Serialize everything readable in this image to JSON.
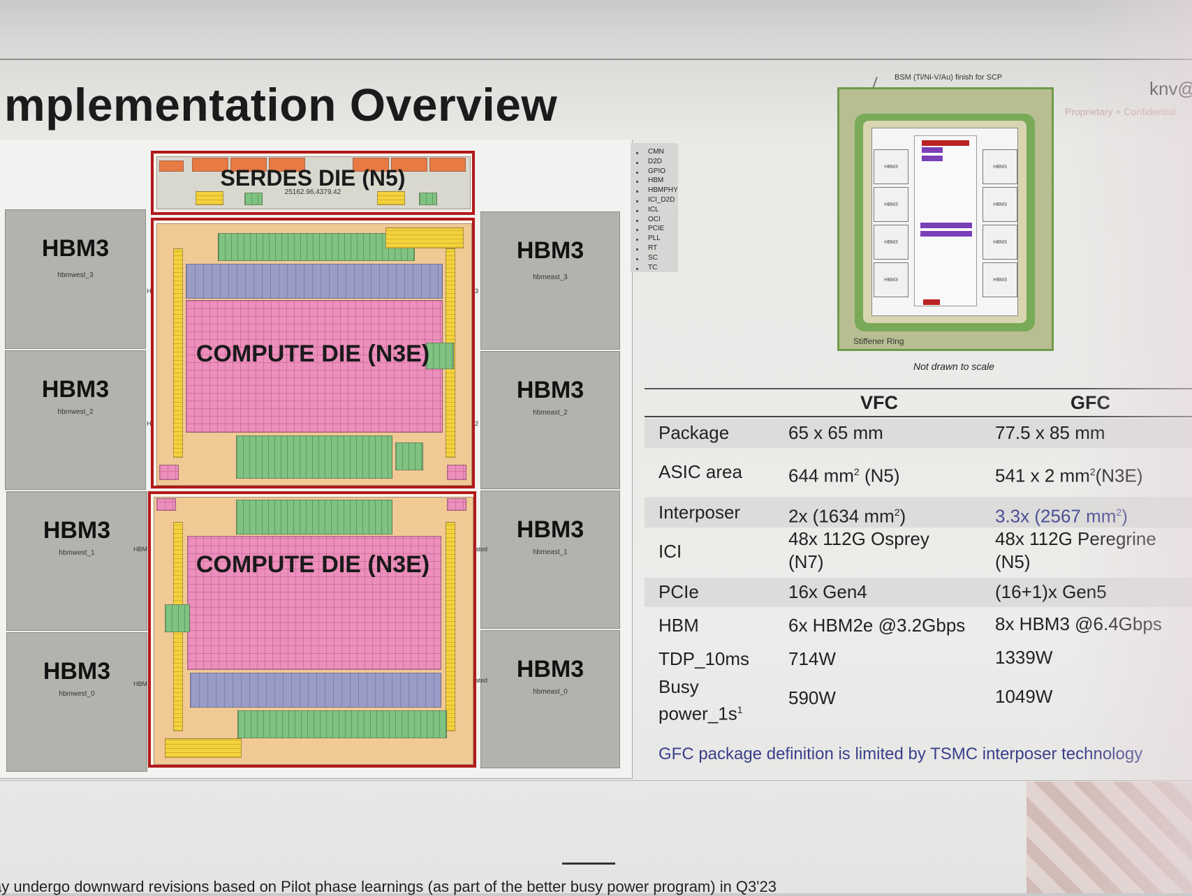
{
  "title": "mplementation Overview",
  "corner_user": "knv@",
  "corner_note": "Proprietary + Confidential",
  "floorplan": {
    "serdes_label_line1": "SERDES DIE (N5)",
    "serdes_coords": "25162.96,4379.42",
    "compute_die_1_label": "COMPUTE DIE (N3E)",
    "compute_die_2_label": "COMPUTE DIE (N3E)",
    "hbm_west": [
      {
        "label": "HBM3",
        "sub": "hbmwest_3"
      },
      {
        "label": "HBM3",
        "sub": "hbmwest_2"
      },
      {
        "label": "HBM3",
        "sub": "hbmwest_1"
      },
      {
        "label": "HBM3",
        "sub": "hbmwest_0"
      }
    ],
    "hbm_east": [
      {
        "label": "HBM3",
        "sub": "hbmeast_3"
      },
      {
        "label": "HBM3",
        "sub": "hbmeast_2"
      },
      {
        "label": "HBM3",
        "sub": "hbmeast_1"
      },
      {
        "label": "HBM3",
        "sub": "hbmeast_0"
      }
    ],
    "side_tags": [
      "H",
      "H",
      "HBM",
      "HBM",
      "3",
      "2",
      "otated",
      "otated"
    ]
  },
  "legend": [
    "CMN",
    "D2D",
    "GPIO",
    "HBM",
    "HBMPHY",
    "ICI_D2D",
    "ICL",
    "OCI",
    "PCIE",
    "PLL",
    "RT",
    "SC",
    "TC"
  ],
  "package_diagram": {
    "bsm_label": "BSM (Ti/Ni-V/Au) finish for SCP",
    "stiffener_label": "Stiffener Ring",
    "hbm_label": "HBM3",
    "not_to_scale": "Not drawn to scale"
  },
  "table": {
    "headers": [
      "",
      "VFC",
      "GFC"
    ],
    "rows": [
      {
        "label": "Package",
        "vfc": "65 x 65 mm",
        "gfc": "77.5 x 85 mm"
      },
      {
        "label": "ASIC area",
        "vfc": "644 mm",
        "vfc_sup": "2",
        "vfc_tail": " (N5)",
        "gfc": "541 x 2 mm",
        "gfc_sup": "2",
        "gfc_tail": "(N3E)"
      },
      {
        "label": "Interposer",
        "vfc": "2x (1634 mm",
        "vfc_sup": "2",
        "vfc_tail": ")",
        "gfc": "3.3x (2567 mm",
        "gfc_sup": "2",
        "gfc_tail": ")"
      },
      {
        "label": "ICI",
        "vfc": "48x 112G Osprey",
        "vfc_line2": "(N7)",
        "gfc": "48x 112G Peregrine",
        "gfc_line2": "(N5)"
      },
      {
        "label": "PCIe",
        "vfc": "16x Gen4",
        "gfc": "(16+1)x Gen5"
      },
      {
        "label": "HBM",
        "vfc": "6x HBM2e @3.2Gbps",
        "gfc": "8x HBM3 @6.4Gbps"
      },
      {
        "label": "TDP_10ms",
        "vfc": "714W",
        "gfc": "1339W"
      },
      {
        "label": "Busy",
        "label_line2": "power_1s",
        "label_sup": "1",
        "vfc": "590W",
        "gfc": "1049W"
      }
    ],
    "accent_color": "#4b4e96"
  },
  "footnote": "GFC package definition is limited by TSMC interposer technology",
  "bottom_text": "ay undergo downward revisions based on Pilot phase learnings (as part of the better busy power program) in Q3'23"
}
